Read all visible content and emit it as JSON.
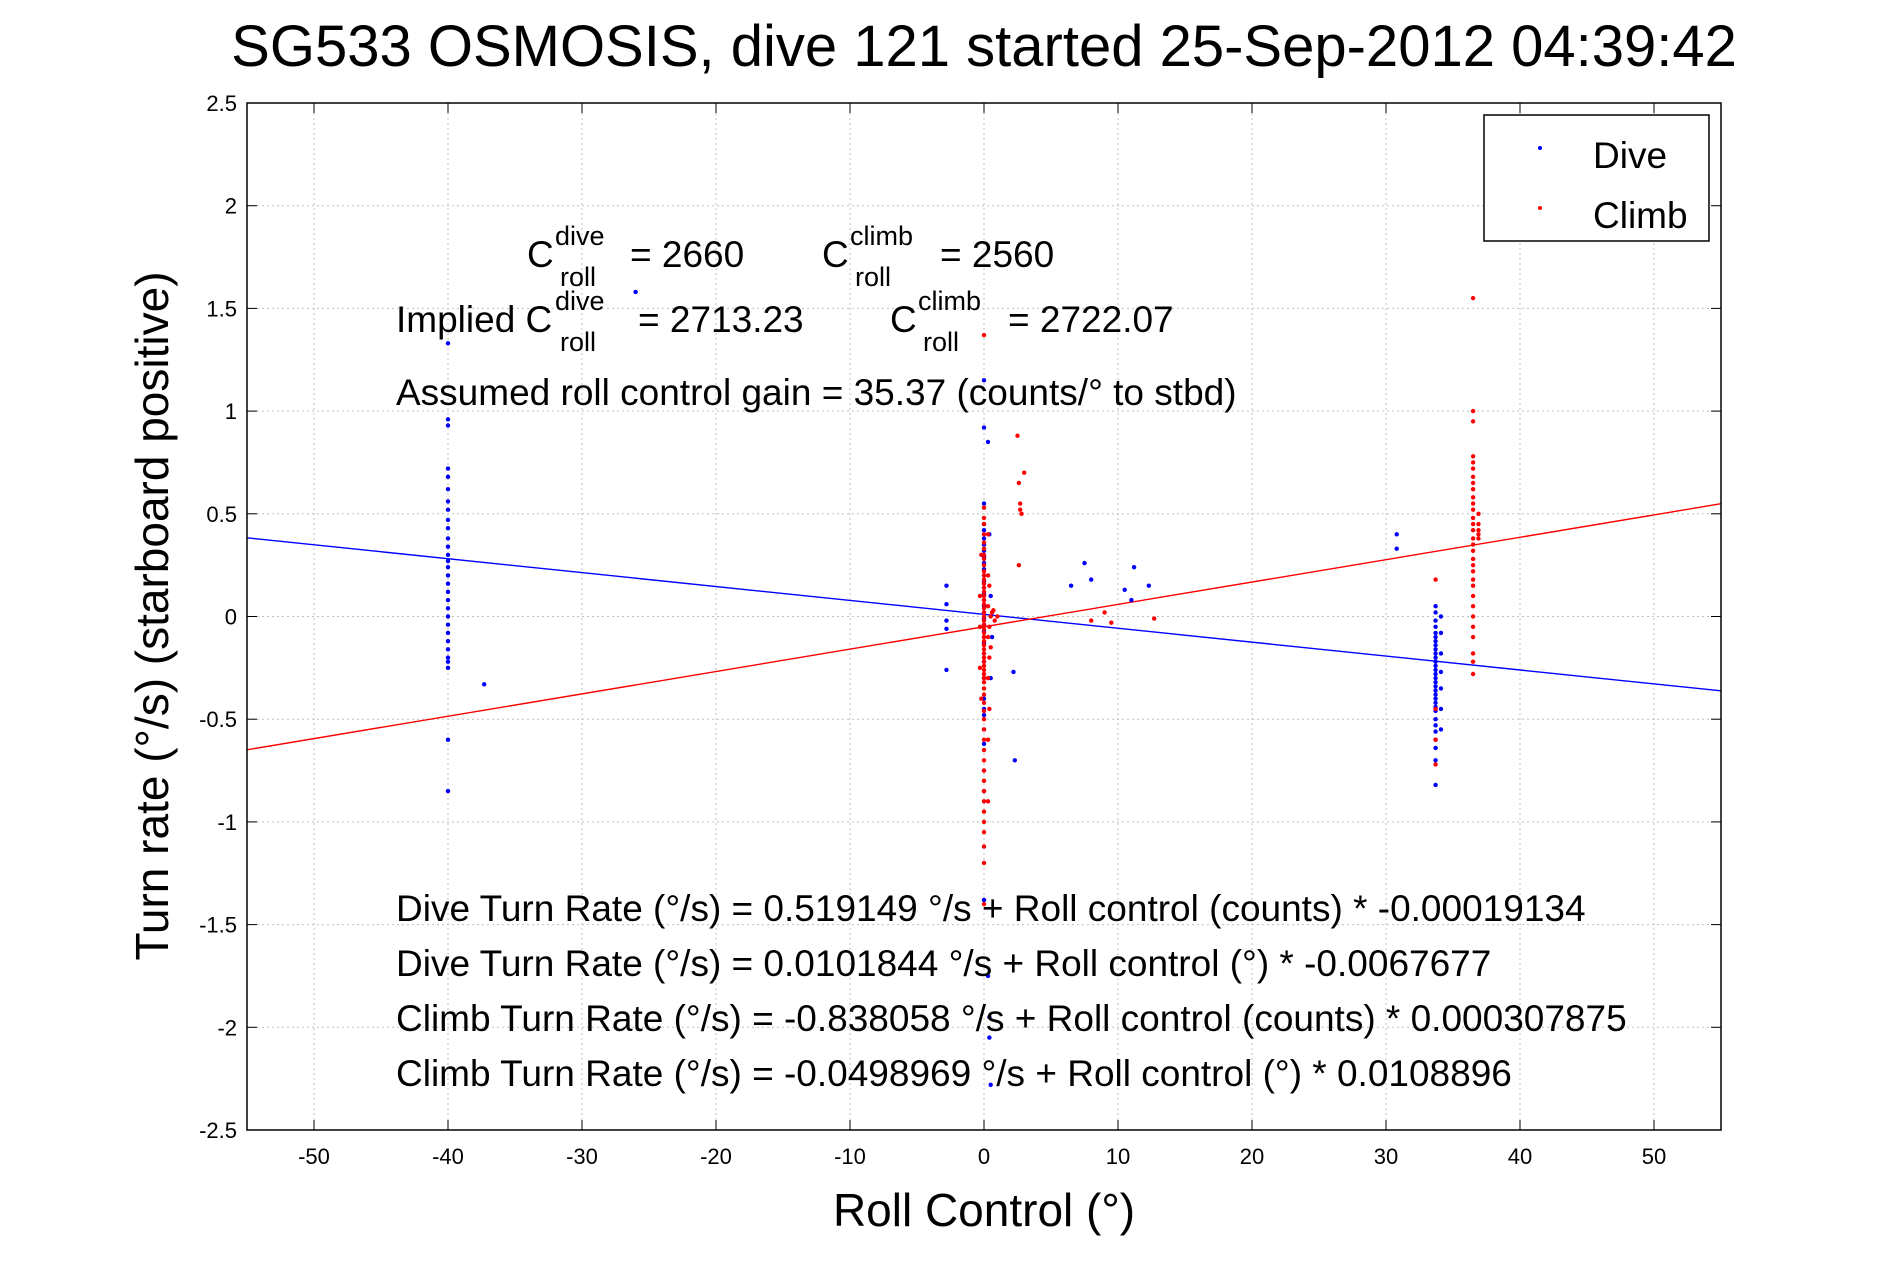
{
  "chart_data": {
    "type": "scatter",
    "title": "SG533 OSMOSIS, dive 121 started 25-Sep-2012 04:39:42",
    "xlabel": "Roll Control (°)",
    "ylabel": "Turn rate (°/s) (starboard positive)",
    "xlim": [
      -55,
      55
    ],
    "ylim": [
      -2.5,
      2.5
    ],
    "xticks": [
      -50,
      -40,
      -30,
      -20,
      -10,
      0,
      10,
      20,
      30,
      40,
      50
    ],
    "yticks": [
      -2.5,
      -2,
      -1.5,
      -1,
      -0.5,
      0,
      0.5,
      1,
      1.5,
      2,
      2.5
    ],
    "grid": true,
    "legend_position": "top-right",
    "colors": {
      "dive": "#0000ff",
      "climb": "#ff0000"
    },
    "series": [
      {
        "name": "Dive",
        "color": "#0000ff",
        "points": [
          [
            -40,
            1.33
          ],
          [
            -40,
            0.96
          ],
          [
            -40,
            0.93
          ],
          [
            -40,
            0.72
          ],
          [
            -40,
            0.68
          ],
          [
            -40,
            0.62
          ],
          [
            -40,
            0.56
          ],
          [
            -40,
            0.52
          ],
          [
            -40,
            0.47
          ],
          [
            -40,
            0.43
          ],
          [
            -40,
            0.38
          ],
          [
            -40,
            0.34
          ],
          [
            -40,
            0.3
          ],
          [
            -40,
            0.27
          ],
          [
            -40,
            0.24
          ],
          [
            -40,
            0.2
          ],
          [
            -40,
            0.16
          ],
          [
            -40,
            0.12
          ],
          [
            -40,
            0.08
          ],
          [
            -40,
            0.04
          ],
          [
            -40,
            0.0
          ],
          [
            -40,
            -0.04
          ],
          [
            -40,
            -0.08
          ],
          [
            -40,
            -0.12
          ],
          [
            -40,
            -0.16
          ],
          [
            -40,
            -0.2
          ],
          [
            -40,
            -0.22
          ],
          [
            -40,
            -0.25
          ],
          [
            -40,
            -0.6
          ],
          [
            -40,
            -0.85
          ],
          [
            -37.3,
            -0.33
          ],
          [
            -26,
            1.58
          ],
          [
            -2.8,
            0.15
          ],
          [
            -2.8,
            0.06
          ],
          [
            -2.8,
            -0.02
          ],
          [
            -2.8,
            -0.06
          ],
          [
            -2.8,
            -0.26
          ],
          [
            0,
            1.15
          ],
          [
            0,
            0.92
          ],
          [
            0,
            0.55
          ],
          [
            0,
            0.45
          ],
          [
            0,
            0.42
          ],
          [
            0,
            0.38
          ],
          [
            0,
            0.35
          ],
          [
            0,
            0.32
          ],
          [
            0,
            0.29
          ],
          [
            0,
            0.26
          ],
          [
            0,
            0.23
          ],
          [
            0,
            0.2
          ],
          [
            0,
            0.17
          ],
          [
            0,
            0.14
          ],
          [
            0,
            0.11
          ],
          [
            0,
            0.08
          ],
          [
            0,
            0.05
          ],
          [
            0,
            0.02
          ],
          [
            0,
            -0.01
          ],
          [
            0,
            -0.04
          ],
          [
            0,
            -0.07
          ],
          [
            0,
            -0.1
          ],
          [
            0,
            -0.13
          ],
          [
            0,
            -0.18
          ],
          [
            0,
            -0.22
          ],
          [
            0,
            -0.3
          ],
          [
            0,
            -0.4
          ],
          [
            0,
            -0.45
          ],
          [
            0,
            -0.48
          ],
          [
            0,
            -0.55
          ],
          [
            0,
            -0.62
          ],
          [
            0,
            -0.75
          ],
          [
            0,
            -0.85
          ],
          [
            0,
            -1.38
          ],
          [
            0.3,
            -1.75
          ],
          [
            0.4,
            -1.95
          ],
          [
            0.4,
            -2.05
          ],
          [
            0.5,
            -2.28
          ],
          [
            0.3,
            0.85
          ],
          [
            0.4,
            0.4
          ],
          [
            0.5,
            0.1
          ],
          [
            0.5,
            -0.3
          ],
          [
            0.6,
            -0.1
          ],
          [
            2.2,
            -0.27
          ],
          [
            2.3,
            -0.7
          ],
          [
            6.5,
            0.15
          ],
          [
            7.5,
            0.26
          ],
          [
            8.0,
            0.18
          ],
          [
            10.5,
            0.13
          ],
          [
            11.0,
            0.08
          ],
          [
            11.2,
            0.24
          ],
          [
            12.3,
            0.15
          ],
          [
            30.8,
            0.4
          ],
          [
            30.8,
            0.33
          ],
          [
            33.7,
            0.05
          ],
          [
            33.7,
            0.02
          ],
          [
            33.7,
            -0.02
          ],
          [
            33.7,
            -0.05
          ],
          [
            33.7,
            -0.08
          ],
          [
            33.7,
            -0.1
          ],
          [
            33.7,
            -0.12
          ],
          [
            33.7,
            -0.14
          ],
          [
            33.7,
            -0.16
          ],
          [
            33.7,
            -0.18
          ],
          [
            33.7,
            -0.2
          ],
          [
            33.7,
            -0.22
          ],
          [
            33.7,
            -0.24
          ],
          [
            33.7,
            -0.26
          ],
          [
            33.7,
            -0.28
          ],
          [
            33.7,
            -0.3
          ],
          [
            33.7,
            -0.32
          ],
          [
            33.7,
            -0.34
          ],
          [
            33.7,
            -0.36
          ],
          [
            33.7,
            -0.38
          ],
          [
            33.7,
            -0.4
          ],
          [
            33.7,
            -0.42
          ],
          [
            33.7,
            -0.44
          ],
          [
            33.7,
            -0.46
          ],
          [
            33.7,
            -0.5
          ],
          [
            33.7,
            -0.53
          ],
          [
            33.7,
            -0.56
          ],
          [
            33.7,
            -0.6
          ],
          [
            33.7,
            -0.64
          ],
          [
            33.7,
            -0.7
          ],
          [
            33.7,
            -0.82
          ],
          [
            34.1,
            0.0
          ],
          [
            34.1,
            -0.08
          ],
          [
            34.1,
            -0.18
          ],
          [
            34.1,
            -0.27
          ],
          [
            34.1,
            -0.35
          ],
          [
            34.1,
            -0.45
          ],
          [
            34.1,
            -0.55
          ]
        ]
      },
      {
        "name": "Climb",
        "color": "#ff0000",
        "points": [
          [
            0,
            1.37
          ],
          [
            0,
            0.53
          ],
          [
            0,
            0.48
          ],
          [
            0,
            0.45
          ],
          [
            0,
            0.4
          ],
          [
            0,
            0.36
          ],
          [
            0,
            0.33
          ],
          [
            0,
            0.3
          ],
          [
            0,
            0.28
          ],
          [
            0,
            0.25
          ],
          [
            0,
            0.22
          ],
          [
            0,
            0.2
          ],
          [
            0,
            0.18
          ],
          [
            0,
            0.16
          ],
          [
            0,
            0.14
          ],
          [
            0,
            0.12
          ],
          [
            0,
            0.1
          ],
          [
            0,
            0.08
          ],
          [
            0,
            0.06
          ],
          [
            0,
            0.04
          ],
          [
            0,
            0.02
          ],
          [
            0,
            0.0
          ],
          [
            0,
            -0.02
          ],
          [
            0,
            -0.04
          ],
          [
            0,
            -0.06
          ],
          [
            0,
            -0.08
          ],
          [
            0,
            -0.1
          ],
          [
            0,
            -0.12
          ],
          [
            0,
            -0.14
          ],
          [
            0,
            -0.16
          ],
          [
            0,
            -0.18
          ],
          [
            0,
            -0.2
          ],
          [
            0,
            -0.22
          ],
          [
            0,
            -0.24
          ],
          [
            0,
            -0.26
          ],
          [
            0,
            -0.28
          ],
          [
            0,
            -0.3
          ],
          [
            0,
            -0.32
          ],
          [
            0,
            -0.35
          ],
          [
            0,
            -0.38
          ],
          [
            0,
            -0.42
          ],
          [
            0,
            -0.46
          ],
          [
            0,
            -0.5
          ],
          [
            0,
            -0.55
          ],
          [
            0,
            -0.6
          ],
          [
            0,
            -0.65
          ],
          [
            0,
            -0.7
          ],
          [
            0,
            -0.75
          ],
          [
            0,
            -0.8
          ],
          [
            0,
            -0.85
          ],
          [
            0,
            -0.9
          ],
          [
            0,
            -0.95
          ],
          [
            0,
            -1.0
          ],
          [
            0,
            -1.05
          ],
          [
            0,
            -1.12
          ],
          [
            0,
            -1.2
          ],
          [
            0,
            -1.4
          ],
          [
            0.3,
            0.4
          ],
          [
            0.3,
            0.2
          ],
          [
            0.3,
            0.05
          ],
          [
            0.3,
            -0.1
          ],
          [
            0.3,
            -0.3
          ],
          [
            0.3,
            -0.6
          ],
          [
            0.3,
            -0.9
          ],
          [
            0.4,
            0.15
          ],
          [
            0.4,
            -0.05
          ],
          [
            0.4,
            -0.2
          ],
          [
            0.4,
            -0.45
          ],
          [
            0.5,
            0.0
          ],
          [
            0.5,
            -0.15
          ],
          [
            0.6,
            0.02
          ],
          [
            -0.3,
            0.1
          ],
          [
            -0.3,
            -0.05
          ],
          [
            -0.3,
            -0.25
          ],
          [
            -0.2,
            0.3
          ],
          [
            -0.2,
            -0.4
          ],
          [
            0.8,
            -0.02
          ],
          [
            1.0,
            0.0
          ],
          [
            0.7,
            0.03
          ],
          [
            2.5,
            0.88
          ],
          [
            2.6,
            0.65
          ],
          [
            2.7,
            0.55
          ],
          [
            2.7,
            0.52
          ],
          [
            2.8,
            0.5
          ],
          [
            3.0,
            0.7
          ],
          [
            2.6,
            0.25
          ],
          [
            8.0,
            -0.02
          ],
          [
            9.0,
            0.02
          ],
          [
            9.5,
            -0.03
          ],
          [
            12.7,
            -0.01
          ],
          [
            33.7,
            0.18
          ],
          [
            33.7,
            -0.45
          ],
          [
            33.7,
            -0.6
          ],
          [
            33.7,
            -0.72
          ],
          [
            36.5,
            1.55
          ],
          [
            36.5,
            1.0
          ],
          [
            36.5,
            0.95
          ],
          [
            36.5,
            0.78
          ],
          [
            36.5,
            0.75
          ],
          [
            36.5,
            0.72
          ],
          [
            36.5,
            0.68
          ],
          [
            36.5,
            0.65
          ],
          [
            36.5,
            0.62
          ],
          [
            36.5,
            0.58
          ],
          [
            36.5,
            0.55
          ],
          [
            36.5,
            0.52
          ],
          [
            36.5,
            0.48
          ],
          [
            36.5,
            0.45
          ],
          [
            36.5,
            0.42
          ],
          [
            36.5,
            0.38
          ],
          [
            36.5,
            0.35
          ],
          [
            36.5,
            0.32
          ],
          [
            36.5,
            0.28
          ],
          [
            36.5,
            0.25
          ],
          [
            36.5,
            0.22
          ],
          [
            36.5,
            0.18
          ],
          [
            36.5,
            0.15
          ],
          [
            36.5,
            0.1
          ],
          [
            36.5,
            0.05
          ],
          [
            36.5,
            0.0
          ],
          [
            36.5,
            -0.05
          ],
          [
            36.5,
            -0.1
          ],
          [
            36.5,
            -0.18
          ],
          [
            36.5,
            -0.22
          ],
          [
            36.5,
            -0.28
          ],
          [
            36.9,
            0.5
          ],
          [
            36.9,
            0.45
          ],
          [
            36.9,
            0.42
          ],
          [
            36.9,
            0.4
          ],
          [
            36.9,
            0.38
          ]
        ]
      }
    ],
    "fit_lines": [
      {
        "name": "Dive fit",
        "color": "#0000ff",
        "x": [
          -55,
          55
        ],
        "y": [
          0.383,
          -0.362
        ]
      },
      {
        "name": "Climb fit",
        "color": "#ff0000",
        "x": [
          -55,
          55
        ],
        "y": [
          -0.649,
          0.549
        ]
      }
    ]
  },
  "legend": [
    {
      "label": "Dive",
      "color": "#0000ff"
    },
    {
      "label": "Climb",
      "color": "#ff0000"
    }
  ],
  "annotations": {
    "c_dive": {
      "base": "C",
      "sup": "dive",
      "sub": "roll",
      "value": "= 2660"
    },
    "c_climb": {
      "base": "C",
      "sup": "climb",
      "sub": "roll",
      "value": "= 2560"
    },
    "implied_prefix": "Implied C",
    "implied_dive": {
      "sup": "dive",
      "sub": "roll",
      "value": "= 2713.23"
    },
    "implied_climb": {
      "base": "C",
      "sup": "climb",
      "sub": "roll",
      "value": "= 2722.07"
    },
    "gain": "Assumed roll control gain = 35.37 (counts/° to stbd)",
    "eq_dive_counts": "Dive Turn Rate (°/s) = 0.519149 °/s + Roll control (counts) * -0.00019134",
    "eq_dive_deg": "Dive Turn Rate (°/s) = 0.0101844 °/s + Roll control (°) * -0.0067677",
    "eq_climb_counts": "Climb Turn Rate (°/s) = -0.838058 °/s + Roll control (counts) * 0.000307875",
    "eq_climb_deg": "Climb Turn Rate (°/s) = -0.0498969 °/s + Roll control (°) * 0.0108896"
  }
}
